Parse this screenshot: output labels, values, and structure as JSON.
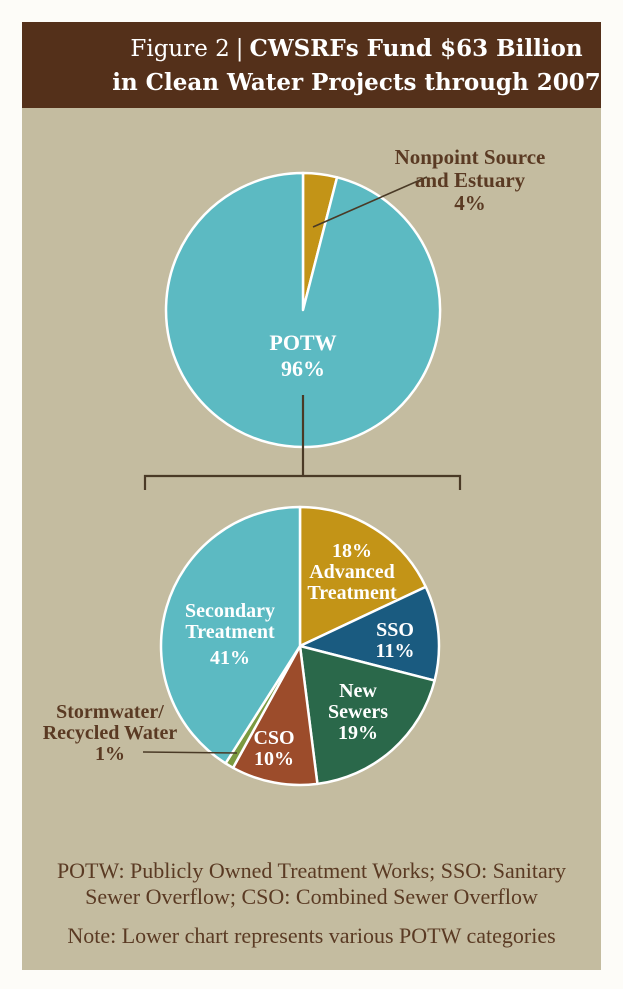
{
  "header": {
    "figure_label": "Figure 2",
    "divider": "|",
    "title_line1": "CWSRFs Fund $63 Billion",
    "title_line2": "in Clean Water Projects through 2007"
  },
  "colors": {
    "header_bg": "#54301a",
    "panel_bg": "#c4bca0",
    "teal": "#5cbac2",
    "gold": "#c39417",
    "blue": "#1a5b80",
    "green": "#2a684a",
    "rust": "#9c4c2b",
    "olive": "#7b9a40",
    "dark_text": "#5a3a23",
    "connector_line": "#4a3a26",
    "slice_border": "#ffffff"
  },
  "chart_data": [
    {
      "type": "pie",
      "name": "total-cwsrf-funding",
      "start_angle_deg": 0,
      "direction": "clockwise",
      "legend_position": "none",
      "slices": [
        {
          "label": "Nonpoint Source and Estuary",
          "value_pct": 4,
          "color": "#c39417",
          "label_lines": [
            "Nonpoint Source",
            "and Estuary",
            "4%"
          ],
          "label_placement": "outside-callout"
        },
        {
          "label": "POTW",
          "value_pct": 96,
          "color": "#5cbac2",
          "label_lines": [
            "POTW",
            "96%"
          ],
          "label_placement": "inside"
        }
      ]
    },
    {
      "type": "pie",
      "name": "potw-categories",
      "start_angle_deg": 0,
      "direction": "clockwise",
      "legend_position": "none",
      "slices": [
        {
          "label": "Advanced Treatment",
          "value_pct": 18,
          "color": "#c39417",
          "label_lines": [
            "18%",
            "Advanced",
            "Treatment"
          ],
          "label_placement": "inside"
        },
        {
          "label": "SSO",
          "value_pct": 11,
          "color": "#1a5b80",
          "label_lines": [
            "SSO",
            "11%"
          ],
          "label_placement": "inside"
        },
        {
          "label": "New Sewers",
          "value_pct": 19,
          "color": "#2a684a",
          "label_lines": [
            "New",
            "Sewers",
            "19%"
          ],
          "label_placement": "inside"
        },
        {
          "label": "CSO",
          "value_pct": 10,
          "color": "#9c4c2b",
          "label_lines": [
            "CSO",
            "10%"
          ],
          "label_placement": "inside"
        },
        {
          "label": "Stormwater/Recycled Water",
          "value_pct": 1,
          "color": "#7b9a40",
          "label_lines": [
            "Stormwater/",
            "Recycled Water",
            "1%"
          ],
          "label_placement": "outside-callout"
        },
        {
          "label": "Secondary Treatment",
          "value_pct": 41,
          "color": "#5cbac2",
          "label_lines": [
            "Secondary",
            "Treatment",
            "41%"
          ],
          "label_placement": "inside"
        }
      ]
    }
  ],
  "footnotes": {
    "abbr_line1": "POTW: Publicly Owned Treatment Works; SSO: Sanitary",
    "abbr_line2": "Sewer Overflow; CSO: Combined Sewer Overflow",
    "note": "Note: Lower chart represents various POTW categories"
  }
}
